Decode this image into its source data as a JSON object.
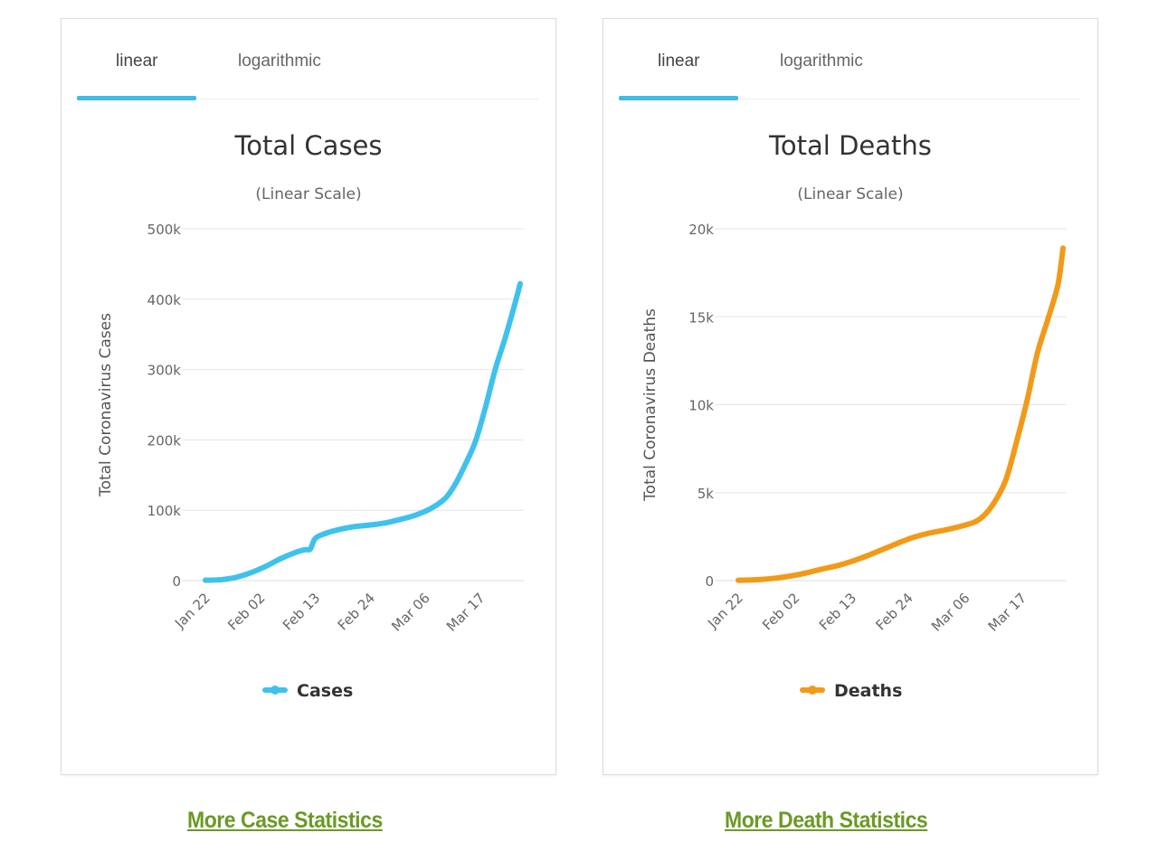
{
  "colors": {
    "cases": "#3fc1ee",
    "deaths": "#f29a18",
    "tab_active": "#3fbce7",
    "link": "#6a9a25",
    "grid": "#e6e6e6",
    "axis_text": "#666666",
    "title_text": "#333333"
  },
  "panels": [
    {
      "tabs": [
        {
          "label": "linear",
          "active": true
        },
        {
          "label": "logarithmic",
          "active": false
        }
      ],
      "link": "More Case Statistics"
    },
    {
      "tabs": [
        {
          "label": "linear",
          "active": true
        },
        {
          "label": "logarithmic",
          "active": false
        }
      ],
      "link": "More Death Statistics"
    }
  ],
  "chart_data": [
    {
      "type": "line",
      "title": "Total Cases",
      "subtitle": "(Linear Scale)",
      "xlabel": "",
      "ylabel": "Total Coronavirus Cases",
      "ylim": [
        0,
        500000
      ],
      "yticks": [
        0,
        100000,
        200000,
        300000,
        400000,
        500000
      ],
      "ytick_labels": [
        "0",
        "100k",
        "200k",
        "300k",
        "400k",
        "500k"
      ],
      "xtick_labels": [
        "Jan 22",
        "Feb 02",
        "Feb 13",
        "Feb 24",
        "Mar 06",
        "Mar 17"
      ],
      "xtick_days": [
        0,
        11,
        22,
        33,
        44,
        55
      ],
      "x_range_days": [
        0,
        63
      ],
      "grid": true,
      "legend": "bottom-center",
      "series": [
        {
          "name": "Cases",
          "color": "#3fc1ee",
          "x_days": [
            0,
            3,
            6,
            9,
            12,
            15,
            18,
            20,
            21,
            22,
            24,
            27,
            30,
            33,
            36,
            39,
            42,
            45,
            48,
            50,
            52,
            54,
            56,
            58,
            60,
            62,
            63
          ],
          "values": [
            600,
            1200,
            4500,
            11000,
            20000,
            31000,
            40000,
            44000,
            45000,
            60000,
            67000,
            73000,
            77000,
            79000,
            82000,
            87000,
            93000,
            102000,
            117000,
            137000,
            165000,
            197000,
            245000,
            300000,
            345000,
            395000,
            422000
          ]
        }
      ]
    },
    {
      "type": "line",
      "title": "Total Deaths",
      "subtitle": "(Linear Scale)",
      "xlabel": "",
      "ylabel": "Total Coronavirus Deaths",
      "ylim": [
        0,
        20000
      ],
      "yticks": [
        0,
        5000,
        10000,
        15000,
        20000
      ],
      "ytick_labels": [
        "0",
        "5k",
        "10k",
        "15k",
        "20k"
      ],
      "xtick_labels": [
        "Jan 22",
        "Feb 02",
        "Feb 13",
        "Feb 24",
        "Mar 06",
        "Mar 17"
      ],
      "xtick_days": [
        0,
        11,
        22,
        33,
        44,
        55
      ],
      "x_range_days": [
        0,
        63
      ],
      "grid": true,
      "legend": "bottom-center",
      "series": [
        {
          "name": "Deaths",
          "color": "#f29a18",
          "x_days": [
            0,
            4,
            8,
            12,
            16,
            20,
            24,
            28,
            30,
            32,
            34,
            37,
            40,
            43,
            46,
            48,
            50,
            52,
            54,
            56,
            58,
            60,
            62,
            63
          ],
          "values": [
            17,
            60,
            170,
            360,
            640,
            910,
            1300,
            1770,
            2010,
            2250,
            2460,
            2700,
            2870,
            3080,
            3350,
            3800,
            4600,
            5800,
            7900,
            10200,
            12900,
            14800,
            16800,
            18900
          ]
        }
      ]
    }
  ]
}
